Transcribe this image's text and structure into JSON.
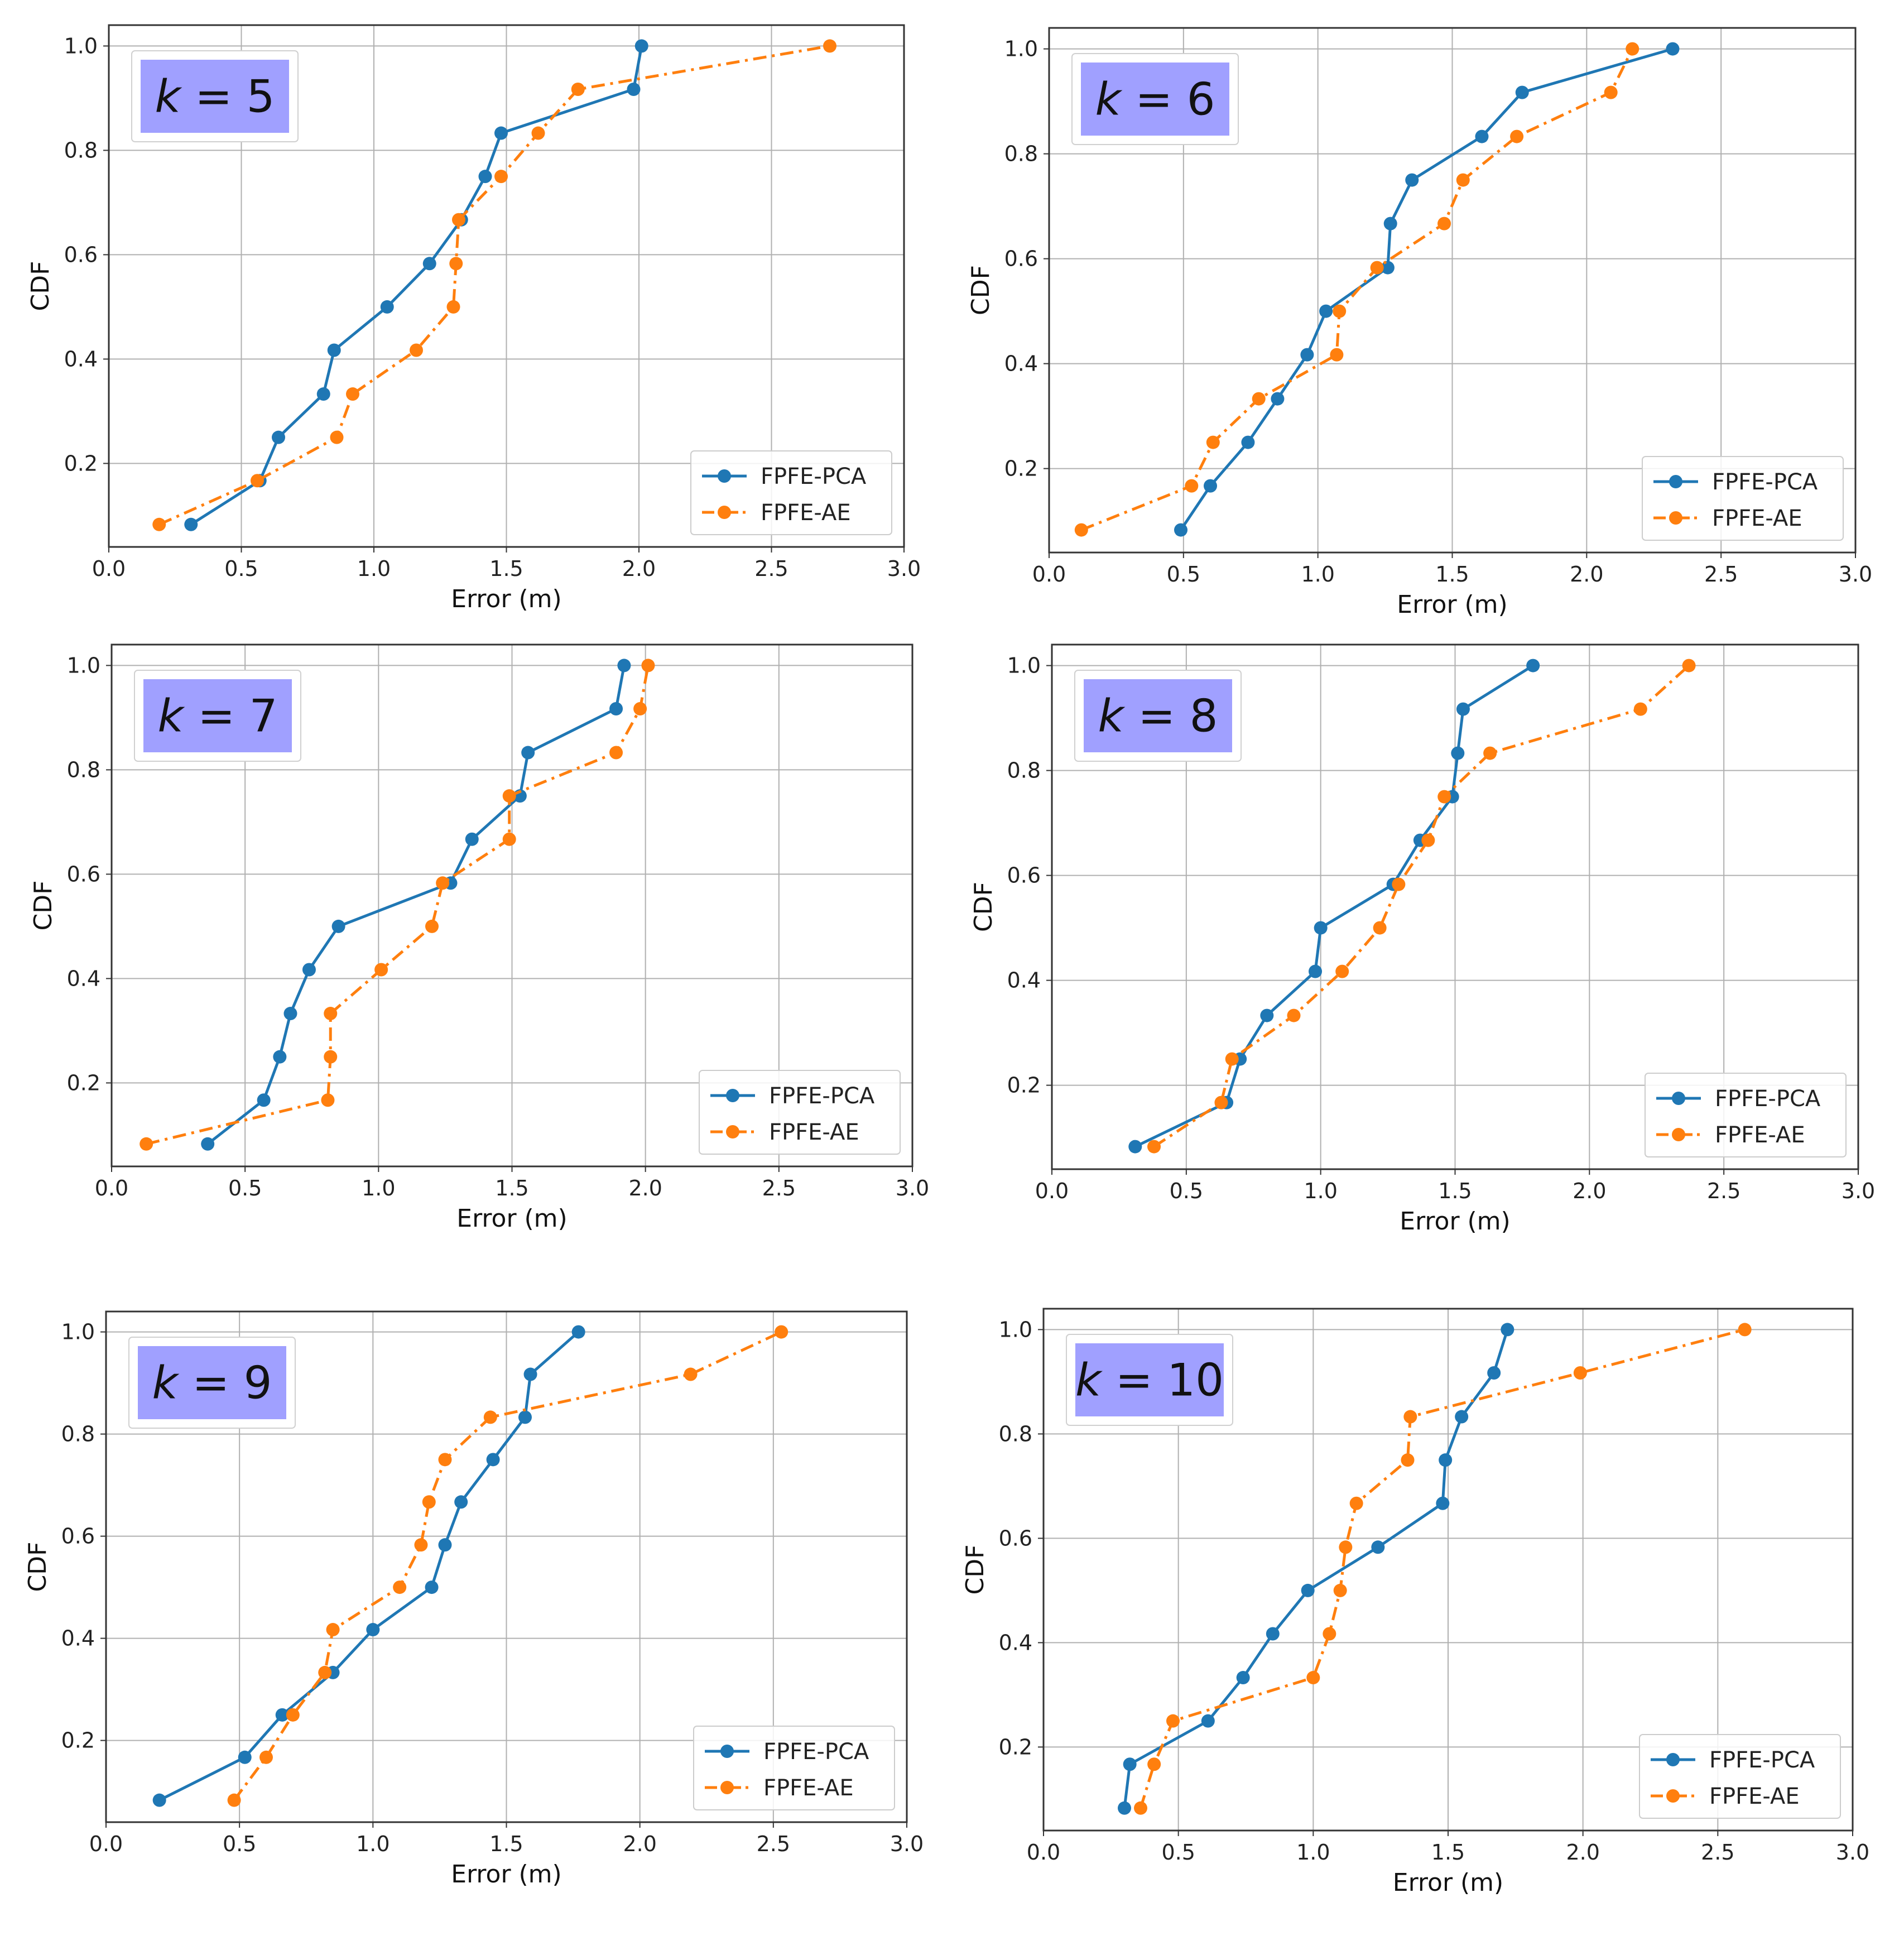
{
  "figure": {
    "colors": {
      "pca": "#1f77b4",
      "ae": "#ff7f0e",
      "k_box": "#a0a0ff",
      "grid": "#b0b0b0"
    }
  },
  "chart_data": [
    {
      "type": "line",
      "annotation": "k = 5",
      "xlabel": "Error (m)",
      "ylabel": "CDF",
      "xlim": [
        0,
        3
      ],
      "ylim": [
        0.04,
        1.04
      ],
      "xticks": [
        "0.0",
        "0.5",
        "1.0",
        "1.5",
        "2.0",
        "2.5",
        "3.0"
      ],
      "yticks": [
        "0.2",
        "0.4",
        "0.6",
        "0.8",
        "1.0"
      ],
      "legend": "bottom-right",
      "grid": true,
      "series": [
        {
          "name": "FPFE-PCA",
          "style": "solid",
          "x": [
            0.31,
            0.57,
            0.64,
            0.81,
            0.85,
            1.05,
            1.21,
            1.33,
            1.42,
            1.48,
            1.98,
            2.01
          ],
          "y": [
            0.083,
            0.167,
            0.25,
            0.333,
            0.417,
            0.5,
            0.583,
            0.667,
            0.75,
            0.833,
            0.917,
            1.0
          ]
        },
        {
          "name": "FPFE-AE",
          "style": "dashdot",
          "x": [
            0.19,
            0.56,
            0.86,
            0.92,
            1.16,
            1.3,
            1.31,
            1.32,
            1.48,
            1.62,
            1.77,
            2.72
          ],
          "y": [
            0.083,
            0.167,
            0.25,
            0.333,
            0.417,
            0.5,
            0.583,
            0.667,
            0.75,
            0.833,
            0.917,
            1.0
          ]
        }
      ]
    },
    {
      "type": "line",
      "annotation": "k = 6",
      "xlabel": "Error (m)",
      "ylabel": "CDF",
      "xlim": [
        0,
        3
      ],
      "ylim": [
        0.04,
        1.04
      ],
      "xticks": [
        "0.0",
        "0.5",
        "1.0",
        "1.5",
        "2.0",
        "2.5",
        "3.0"
      ],
      "yticks": [
        "0.2",
        "0.4",
        "0.6",
        "0.8",
        "1.0"
      ],
      "legend": "bottom-right",
      "grid": true,
      "series": [
        {
          "name": "FPFE-PCA",
          "style": "solid",
          "x": [
            0.49,
            0.6,
            0.74,
            0.85,
            0.96,
            1.03,
            1.26,
            1.27,
            1.35,
            1.61,
            1.76,
            2.32
          ],
          "y": [
            0.083,
            0.167,
            0.25,
            0.333,
            0.417,
            0.5,
            0.583,
            0.667,
            0.75,
            0.833,
            0.917,
            1.0
          ]
        },
        {
          "name": "FPFE-AE",
          "style": "dashdot",
          "x": [
            0.12,
            0.53,
            0.61,
            0.78,
            1.07,
            1.08,
            1.22,
            1.47,
            1.54,
            1.74,
            2.09,
            2.17
          ],
          "y": [
            0.083,
            0.167,
            0.25,
            0.333,
            0.417,
            0.5,
            0.583,
            0.667,
            0.75,
            0.833,
            0.917,
            1.0
          ]
        }
      ]
    },
    {
      "type": "line",
      "annotation": "k = 7",
      "xlabel": "Error (m)",
      "ylabel": "CDF",
      "xlim": [
        0,
        3
      ],
      "ylim": [
        0.04,
        1.04
      ],
      "xticks": [
        "0.0",
        "0.5",
        "1.0",
        "1.5",
        "2.0",
        "2.5",
        "3.0"
      ],
      "yticks": [
        "0.2",
        "0.4",
        "0.6",
        "0.8",
        "1.0"
      ],
      "legend": "bottom-right",
      "grid": true,
      "series": [
        {
          "name": "FPFE-PCA",
          "style": "solid",
          "x": [
            0.36,
            0.57,
            0.63,
            0.67,
            0.74,
            0.85,
            1.27,
            1.35,
            1.53,
            1.56,
            1.89,
            1.92
          ],
          "y": [
            0.083,
            0.167,
            0.25,
            0.333,
            0.417,
            0.5,
            0.583,
            0.667,
            0.75,
            0.833,
            0.917,
            1.0
          ]
        },
        {
          "name": "FPFE-AE",
          "style": "dashdot",
          "x": [
            0.13,
            0.81,
            0.82,
            0.82,
            1.01,
            1.2,
            1.24,
            1.49,
            1.49,
            1.89,
            1.98,
            2.01
          ],
          "y": [
            0.083,
            0.167,
            0.25,
            0.333,
            0.417,
            0.5,
            0.583,
            0.667,
            0.75,
            0.833,
            0.917,
            1.0
          ]
        }
      ]
    },
    {
      "type": "line",
      "annotation": "k = 8",
      "xlabel": "Error (m)",
      "ylabel": "CDF",
      "xlim": [
        0,
        3
      ],
      "ylim": [
        0.04,
        1.04
      ],
      "xticks": [
        "0.0",
        "0.5",
        "1.0",
        "1.5",
        "2.0",
        "2.5",
        "3.0"
      ],
      "yticks": [
        "0.2",
        "0.4",
        "0.6",
        "0.8",
        "1.0"
      ],
      "legend": "bottom-right",
      "grid": true,
      "series": [
        {
          "name": "FPFE-PCA",
          "style": "solid",
          "x": [
            0.31,
            0.65,
            0.7,
            0.8,
            0.98,
            1.0,
            1.27,
            1.37,
            1.49,
            1.51,
            1.53,
            1.79
          ],
          "y": [
            0.083,
            0.167,
            0.25,
            0.333,
            0.417,
            0.5,
            0.583,
            0.667,
            0.75,
            0.833,
            0.917,
            1.0
          ]
        },
        {
          "name": "FPFE-AE",
          "style": "dashdot",
          "x": [
            0.38,
            0.63,
            0.67,
            0.9,
            1.08,
            1.22,
            1.29,
            1.4,
            1.46,
            1.63,
            2.19,
            2.37
          ],
          "y": [
            0.083,
            0.167,
            0.25,
            0.333,
            0.417,
            0.5,
            0.583,
            0.667,
            0.75,
            0.833,
            0.917,
            1.0
          ]
        }
      ]
    },
    {
      "type": "line",
      "annotation": "k = 9",
      "xlabel": "Error (m)",
      "ylabel": "CDF",
      "xlim": [
        0,
        3
      ],
      "ylim": [
        0.04,
        1.04
      ],
      "xticks": [
        "0.0",
        "0.5",
        "1.0",
        "1.5",
        "2.0",
        "2.5",
        "3.0"
      ],
      "yticks": [
        "0.2",
        "0.4",
        "0.6",
        "0.8",
        "1.0"
      ],
      "legend": "bottom-right",
      "grid": true,
      "series": [
        {
          "name": "FPFE-PCA",
          "style": "solid",
          "x": [
            0.2,
            0.52,
            0.66,
            0.85,
            1.0,
            1.22,
            1.27,
            1.33,
            1.45,
            1.57,
            1.59,
            1.77
          ],
          "y": [
            0.083,
            0.167,
            0.25,
            0.333,
            0.417,
            0.5,
            0.583,
            0.667,
            0.75,
            0.833,
            0.917,
            1.0
          ]
        },
        {
          "name": "FPFE-AE",
          "style": "dashdot",
          "x": [
            0.48,
            0.6,
            0.7,
            0.82,
            0.85,
            1.1,
            1.18,
            1.21,
            1.27,
            1.44,
            2.19,
            2.53
          ],
          "y": [
            0.083,
            0.167,
            0.25,
            0.333,
            0.417,
            0.5,
            0.583,
            0.667,
            0.75,
            0.833,
            0.917,
            1.0
          ]
        }
      ]
    },
    {
      "type": "line",
      "annotation": "k = 10",
      "xlabel": "Error (m)",
      "ylabel": "CDF",
      "xlim": [
        0,
        3
      ],
      "ylim": [
        0.04,
        1.04
      ],
      "xticks": [
        "0.0",
        "0.5",
        "1.0",
        "1.5",
        "2.0",
        "2.5",
        "3.0"
      ],
      "yticks": [
        "0.2",
        "0.4",
        "0.6",
        "0.8",
        "1.0"
      ],
      "legend": "bottom-right",
      "grid": true,
      "series": [
        {
          "name": "FPFE-PCA",
          "style": "solid",
          "x": [
            0.3,
            0.32,
            0.61,
            0.74,
            0.85,
            0.98,
            1.24,
            1.48,
            1.49,
            1.55,
            1.67,
            1.72
          ],
          "y": [
            0.083,
            0.167,
            0.25,
            0.333,
            0.417,
            0.5,
            0.583,
            0.667,
            0.75,
            0.833,
            0.917,
            1.0
          ]
        },
        {
          "name": "FPFE-AE",
          "style": "dashdot",
          "x": [
            0.36,
            0.41,
            0.48,
            1.0,
            1.06,
            1.1,
            1.12,
            1.16,
            1.35,
            1.36,
            1.99,
            2.6
          ],
          "y": [
            0.083,
            0.167,
            0.25,
            0.333,
            0.417,
            0.5,
            0.583,
            0.667,
            0.75,
            0.833,
            0.917,
            1.0
          ]
        }
      ]
    }
  ]
}
